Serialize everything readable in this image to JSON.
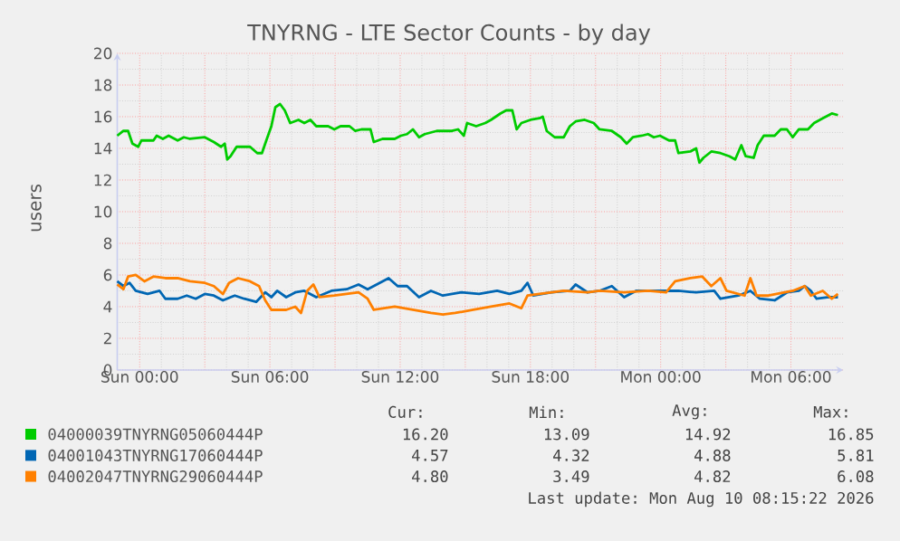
{
  "chart_data": {
    "type": "line",
    "title": "TNYRNG - LTE Sector Counts - by day",
    "ylabel": "users",
    "xlim": [
      "2026-08-08T22:58",
      "2026-08-10T08:25"
    ],
    "ylim": [
      0,
      20
    ],
    "xticks": [
      {
        "value": "2026-08-09T00:00",
        "label": "Sun 00:00"
      },
      {
        "value": "2026-08-09T03:00",
        "label": null
      },
      {
        "value": "2026-08-09T06:00",
        "label": "Sun 06:00"
      },
      {
        "value": "2026-08-09T09:00",
        "label": null
      },
      {
        "value": "2026-08-09T12:00",
        "label": "Sun 12:00"
      },
      {
        "value": "2026-08-09T15:00",
        "label": null
      },
      {
        "value": "2026-08-09T18:00",
        "label": "Sun 18:00"
      },
      {
        "value": "2026-08-09T21:00",
        "label": null
      },
      {
        "value": "2026-08-10T00:00",
        "label": "Mon 00:00"
      },
      {
        "value": "2026-08-10T03:00",
        "label": null
      },
      {
        "value": "2026-08-10T06:00",
        "label": "Mon 06:00"
      }
    ],
    "yticks": [
      0,
      2,
      4,
      6,
      8,
      10,
      12,
      14,
      16,
      18,
      20
    ],
    "grid": true,
    "legend": "bottom",
    "series": [
      {
        "name": "04000039TNYRNG05060444P",
        "color": "#00cc00",
        "x": [
          "2026-08-08T22:58",
          "2026-08-08T23:15",
          "2026-08-08T23:28",
          "2026-08-08T23:40",
          "2026-08-08T23:56",
          "2026-08-09T00:05",
          "2026-08-09T00:38",
          "2026-08-09T00:47",
          "2026-08-09T01:04",
          "2026-08-09T01:20",
          "2026-08-09T01:45",
          "2026-08-09T02:02",
          "2026-08-09T02:19",
          "2026-08-09T03:00",
          "2026-08-09T03:25",
          "2026-08-09T03:45",
          "2026-08-09T03:55",
          "2026-08-09T04:02",
          "2026-08-09T04:11",
          "2026-08-09T04:28",
          "2026-08-09T05:05",
          "2026-08-09T05:25",
          "2026-08-09T05:38",
          "2026-08-09T05:50",
          "2026-08-09T06:04",
          "2026-08-09T06:15",
          "2026-08-09T06:28",
          "2026-08-09T06:41",
          "2026-08-09T06:56",
          "2026-08-09T07:19",
          "2026-08-09T07:35",
          "2026-08-09T07:52",
          "2026-08-09T08:08",
          "2026-08-09T08:41",
          "2026-08-09T08:58",
          "2026-08-09T09:15",
          "2026-08-09T09:40",
          "2026-08-09T09:56",
          "2026-08-09T10:13",
          "2026-08-09T10:38",
          "2026-08-09T10:47",
          "2026-08-09T11:11",
          "2026-08-09T11:45",
          "2026-08-09T12:02",
          "2026-08-09T12:19",
          "2026-08-09T12:35",
          "2026-08-09T12:52",
          "2026-08-09T13:08",
          "2026-08-09T13:41",
          "2026-08-09T14:23",
          "2026-08-09T14:40",
          "2026-08-09T14:56",
          "2026-08-09T15:05",
          "2026-08-09T15:30",
          "2026-08-09T15:55",
          "2026-08-09T16:11",
          "2026-08-09T16:37",
          "2026-08-09T16:53",
          "2026-08-09T17:10",
          "2026-08-09T17:22",
          "2026-08-09T17:35",
          "2026-08-09T18:00",
          "2026-08-09T18:25",
          "2026-08-09T18:34",
          "2026-08-09T18:45",
          "2026-08-09T19:07",
          "2026-08-09T19:32",
          "2026-08-09T19:49",
          "2026-08-09T20:05",
          "2026-08-09T20:30",
          "2026-08-09T20:55",
          "2026-08-09T21:11",
          "2026-08-09T21:45",
          "2026-08-09T22:10",
          "2026-08-09T22:26",
          "2026-08-09T22:43",
          "2026-08-09T23:08",
          "2026-08-09T23:25",
          "2026-08-09T23:41",
          "2026-08-09T23:58",
          "2026-08-10T00:23",
          "2026-08-10T00:40",
          "2026-08-10T00:49",
          "2026-08-10T01:22",
          "2026-08-10T01:38",
          "2026-08-10T01:47",
          "2026-08-10T01:58",
          "2026-08-10T02:20",
          "2026-08-10T02:45",
          "2026-08-10T03:10",
          "2026-08-10T03:26",
          "2026-08-10T03:43",
          "2026-08-10T03:55",
          "2026-08-10T04:17",
          "2026-08-10T04:28",
          "2026-08-10T04:45",
          "2026-08-10T05:15",
          "2026-08-10T05:32",
          "2026-08-10T05:49",
          "2026-08-10T06:05",
          "2026-08-10T06:22",
          "2026-08-10T06:47",
          "2026-08-10T07:04",
          "2026-08-10T07:28",
          "2026-08-10T07:53",
          "2026-08-10T08:10"
        ],
        "values": [
          14.8,
          15.1,
          15.1,
          14.3,
          14.1,
          14.5,
          14.5,
          14.8,
          14.6,
          14.8,
          14.5,
          14.7,
          14.6,
          14.7,
          14.4,
          14.1,
          14.3,
          13.3,
          13.5,
          14.1,
          14.1,
          13.7,
          13.7,
          14.5,
          15.4,
          16.6,
          16.8,
          16.4,
          15.6,
          15.8,
          15.6,
          15.8,
          15.4,
          15.4,
          15.2,
          15.4,
          15.4,
          15.1,
          15.2,
          15.2,
          14.4,
          14.6,
          14.6,
          14.8,
          14.9,
          15.2,
          14.7,
          14.9,
          15.1,
          15.1,
          15.2,
          14.8,
          15.6,
          15.4,
          15.6,
          15.8,
          16.2,
          16.4,
          16.4,
          15.2,
          15.6,
          15.8,
          15.9,
          16.0,
          15.1,
          14.7,
          14.7,
          15.4,
          15.7,
          15.8,
          15.6,
          15.2,
          15.1,
          14.7,
          14.3,
          14.7,
          14.8,
          14.9,
          14.7,
          14.8,
          14.5,
          14.5,
          13.7,
          13.8,
          14.0,
          13.1,
          13.4,
          13.8,
          13.7,
          13.5,
          13.3,
          14.2,
          13.5,
          13.4,
          14.2,
          14.8,
          14.8,
          15.2,
          15.2,
          14.7,
          15.2,
          15.2,
          15.6,
          15.9,
          16.2,
          16.1
        ]
      },
      {
        "name": "04001043TNYRNG17060444P",
        "color": "#0066b3",
        "x": [
          "2026-08-08T22:58",
          "2026-08-08T23:15",
          "2026-08-08T23:32",
          "2026-08-08T23:49",
          "2026-08-09T00:22",
          "2026-08-09T00:55",
          "2026-08-09T01:11",
          "2026-08-09T01:45",
          "2026-08-09T02:10",
          "2026-08-09T02:35",
          "2026-08-09T03:00",
          "2026-08-09T03:25",
          "2026-08-09T03:50",
          "2026-08-09T04:23",
          "2026-08-09T04:49",
          "2026-08-09T05:22",
          "2026-08-09T05:47",
          "2026-08-09T06:04",
          "2026-08-09T06:20",
          "2026-08-09T06:45",
          "2026-08-09T07:10",
          "2026-08-09T07:35",
          "2026-08-09T08:08",
          "2026-08-09T08:50",
          "2026-08-09T09:32",
          "2026-08-09T10:05",
          "2026-08-09T10:30",
          "2026-08-09T10:55",
          "2026-08-09T11:28",
          "2026-08-09T11:53",
          "2026-08-09T12:19",
          "2026-08-09T12:52",
          "2026-08-09T13:25",
          "2026-08-09T13:58",
          "2026-08-09T14:49",
          "2026-08-09T15:38",
          "2026-08-09T16:28",
          "2026-08-09T17:02",
          "2026-08-09T17:35",
          "2026-08-09T17:52",
          "2026-08-09T18:08",
          "2026-08-09T18:58",
          "2026-08-09T19:49",
          "2026-08-09T20:05",
          "2026-08-09T20:38",
          "2026-08-09T21:11",
          "2026-08-09T21:45",
          "2026-08-09T22:19",
          "2026-08-09T22:52",
          "2026-08-09T23:25",
          "2026-08-09T23:58",
          "2026-08-10T00:49",
          "2026-08-10T01:38",
          "2026-08-10T02:28",
          "2026-08-10T02:45",
          "2026-08-10T03:35",
          "2026-08-10T04:08",
          "2026-08-10T04:34",
          "2026-08-10T05:15",
          "2026-08-10T05:49",
          "2026-08-10T06:22",
          "2026-08-10T06:38",
          "2026-08-10T06:55",
          "2026-08-10T07:11",
          "2026-08-10T07:45",
          "2026-08-10T08:10"
        ],
        "values": [
          5.6,
          5.3,
          5.5,
          5.0,
          4.8,
          5.0,
          4.5,
          4.5,
          4.7,
          4.5,
          4.8,
          4.7,
          4.4,
          4.7,
          4.5,
          4.3,
          4.9,
          4.6,
          5.0,
          4.6,
          4.9,
          5.0,
          4.6,
          5.0,
          5.1,
          5.4,
          5.1,
          5.4,
          5.8,
          5.3,
          5.3,
          4.6,
          5.0,
          4.7,
          4.9,
          4.8,
          5.0,
          4.8,
          5.0,
          5.5,
          4.7,
          4.9,
          5.0,
          5.4,
          4.9,
          5.0,
          5.3,
          4.6,
          5.0,
          5.0,
          5.0,
          5.0,
          4.9,
          5.0,
          4.5,
          4.7,
          5.0,
          4.5,
          4.4,
          4.9,
          5.0,
          5.3,
          5.0,
          4.5,
          4.6,
          4.6
        ]
      },
      {
        "name": "04002047TNYRNG29060444P",
        "color": "#ff8000",
        "x": [
          "2026-08-08T22:58",
          "2026-08-08T23:15",
          "2026-08-08T23:28",
          "2026-08-08T23:49",
          "2026-08-09T00:13",
          "2026-08-09T00:38",
          "2026-08-09T01:11",
          "2026-08-09T01:45",
          "2026-08-09T02:19",
          "2026-08-09T03:00",
          "2026-08-09T03:25",
          "2026-08-09T03:50",
          "2026-08-09T04:07",
          "2026-08-09T04:32",
          "2026-08-09T05:05",
          "2026-08-09T05:30",
          "2026-08-09T05:47",
          "2026-08-09T06:04",
          "2026-08-09T06:45",
          "2026-08-09T07:10",
          "2026-08-09T07:26",
          "2026-08-09T07:43",
          "2026-08-09T08:00",
          "2026-08-09T08:17",
          "2026-08-09T08:58",
          "2026-08-09T10:05",
          "2026-08-09T10:30",
          "2026-08-09T10:47",
          "2026-08-09T11:45",
          "2026-08-09T12:35",
          "2026-08-09T13:25",
          "2026-08-09T13:58",
          "2026-08-09T14:32",
          "2026-08-09T15:22",
          "2026-08-09T16:11",
          "2026-08-09T17:02",
          "2026-08-09T17:35",
          "2026-08-09T17:52",
          "2026-08-09T18:25",
          "2026-08-09T19:32",
          "2026-08-09T20:38",
          "2026-08-09T21:11",
          "2026-08-09T22:19",
          "2026-08-09T23:25",
          "2026-08-10T00:15",
          "2026-08-10T00:40",
          "2026-08-10T01:22",
          "2026-08-10T01:55",
          "2026-08-10T02:20",
          "2026-08-10T02:45",
          "2026-08-10T03:02",
          "2026-08-10T03:52",
          "2026-08-10T04:08",
          "2026-08-10T04:25",
          "2026-08-10T04:58",
          "2026-08-10T06:05",
          "2026-08-10T06:38",
          "2026-08-10T06:55",
          "2026-08-10T07:28",
          "2026-08-10T07:53",
          "2026-08-10T08:10"
        ],
        "values": [
          5.4,
          5.1,
          5.9,
          6.0,
          5.6,
          5.9,
          5.8,
          5.8,
          5.6,
          5.5,
          5.3,
          4.8,
          5.5,
          5.8,
          5.6,
          5.3,
          4.4,
          3.8,
          3.8,
          4.0,
          3.6,
          5.0,
          5.4,
          4.6,
          4.7,
          4.9,
          4.5,
          3.8,
          4.0,
          3.8,
          3.6,
          3.5,
          3.6,
          3.8,
          4.0,
          4.2,
          3.9,
          4.7,
          4.8,
          5.0,
          4.9,
          5.0,
          4.9,
          5.0,
          4.9,
          5.6,
          5.8,
          5.9,
          5.3,
          5.8,
          5.0,
          4.7,
          5.8,
          4.7,
          4.7,
          5.0,
          5.3,
          4.7,
          5.0,
          4.5,
          4.8
        ]
      }
    ],
    "annotations": [
      "Cur:",
      "Min:",
      "Avg:",
      "Max:",
      "16.20",
      "13.09",
      "14.92",
      "16.85",
      "4.57",
      "4.32",
      "4.88",
      "5.81",
      "4.80",
      "3.49",
      "4.82",
      "6.08",
      "Last update: Mon Aug 10 08:15:22 2026"
    ]
  }
}
